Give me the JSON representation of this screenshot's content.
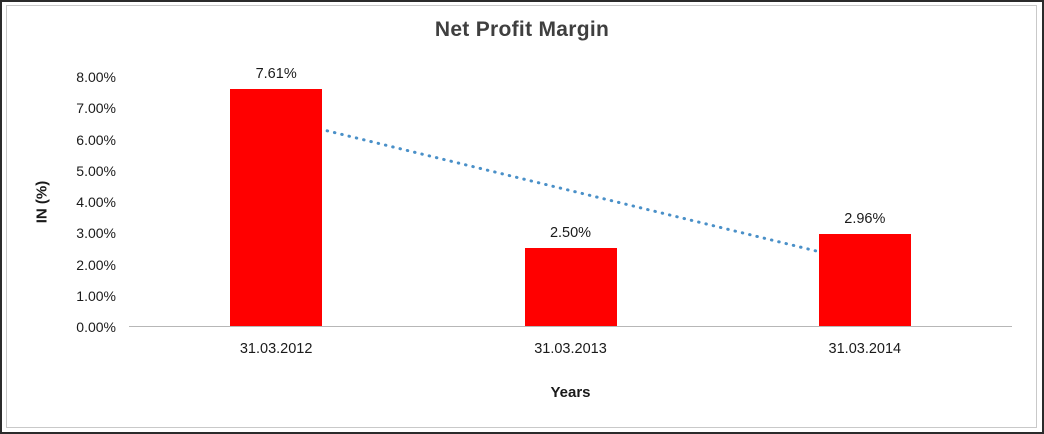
{
  "chart_data": {
    "type": "bar",
    "title": "Net Profit Margin",
    "xlabel": "Years",
    "ylabel": "IN (%)",
    "categories": [
      "31.03.2012",
      "31.03.2013",
      "31.03.2014"
    ],
    "values": [
      7.61,
      2.5,
      2.96
    ],
    "data_labels": [
      "7.61%",
      "2.50%",
      "2.96%"
    ],
    "y_tick_labels": [
      "0.00%",
      "1.00%",
      "2.00%",
      "3.00%",
      "4.00%",
      "5.00%",
      "6.00%",
      "7.00%",
      "8.00%"
    ],
    "ylim": [
      0,
      8
    ],
    "y_tick_step": 1,
    "bar_color": "#ff0000",
    "gridlines": false,
    "legend": "none",
    "trendline": {
      "style": "dotted",
      "color": "#4a90c8",
      "start_value": 6.68,
      "end_value": 2.05
    }
  }
}
